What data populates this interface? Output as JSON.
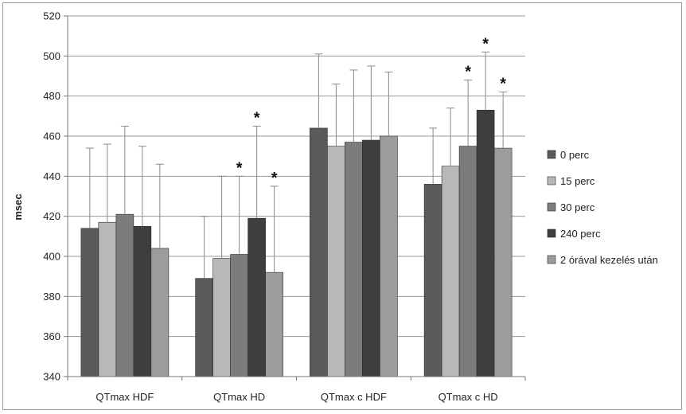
{
  "chart_data": {
    "type": "bar",
    "ylabel": "msec",
    "xlabel": "",
    "ylim": [
      340,
      520
    ],
    "yticks": [
      340,
      360,
      380,
      400,
      420,
      440,
      460,
      480,
      500,
      520
    ],
    "grid": true,
    "legend_position": "right",
    "categories": [
      "QTmax HDF",
      "QTmax HD",
      "QTmax c HDF",
      "QTmax c HD"
    ],
    "series": [
      {
        "name": "0 perc",
        "color": "#5a5a5a",
        "values": [
          414,
          389,
          464,
          436
        ],
        "error_upper": [
          454,
          420,
          501,
          464
        ],
        "significant": [
          false,
          false,
          false,
          false
        ]
      },
      {
        "name": "15 perc",
        "color": "#b8b8b8",
        "values": [
          417,
          399,
          455,
          445
        ],
        "error_upper": [
          456,
          440,
          486,
          474
        ],
        "significant": [
          false,
          false,
          false,
          false
        ]
      },
      {
        "name": "30 perc",
        "color": "#7c7c7c",
        "values": [
          421,
          401,
          457,
          455
        ],
        "error_upper": [
          465,
          440,
          493,
          488
        ],
        "significant": [
          false,
          true,
          false,
          true
        ]
      },
      {
        "name": "240 perc",
        "color": "#3e3e3e",
        "values": [
          415,
          419,
          458,
          473
        ],
        "error_upper": [
          455,
          465,
          495,
          502
        ],
        "significant": [
          false,
          true,
          false,
          true
        ]
      },
      {
        "name": "2 órával kezelés után",
        "color": "#9c9c9c",
        "values": [
          404,
          392,
          460,
          454
        ],
        "error_upper": [
          446,
          435,
          492,
          482
        ],
        "significant": [
          false,
          true,
          false,
          true
        ]
      }
    ],
    "annotation_symbol": "*"
  }
}
